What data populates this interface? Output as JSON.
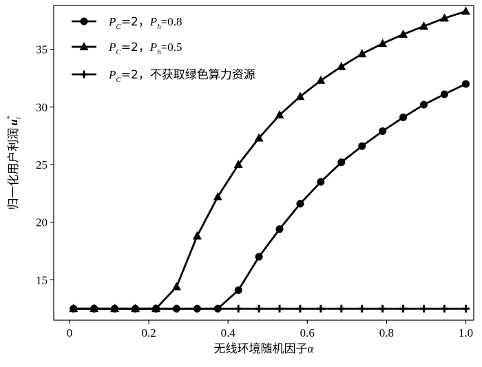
{
  "chart_data": {
    "type": "line",
    "xlabel": "无线环境随机因子",
    "xlabel_symbol": "α",
    "ylabel": "归一化用户利润",
    "ylabel_symbol": "u",
    "ylabel_sub": "i",
    "ylabel_sup": "*",
    "xlim": [
      -0.04,
      1.02
    ],
    "ylim": [
      11.5,
      38.8
    ],
    "xticks": [
      "0",
      "0.2",
      "0.4",
      "0.6",
      "0.8",
      "1.0"
    ],
    "xtick_values": [
      0,
      0.2,
      0.4,
      0.6,
      0.8,
      1.0
    ],
    "yticks": [
      "15",
      "20",
      "25",
      "30",
      "35"
    ],
    "ytick_values": [
      15,
      20,
      25,
      30,
      35
    ],
    "legend_position": "top-left",
    "grid": false,
    "x": [
      0.01,
      0.062,
      0.114,
      0.166,
      0.218,
      0.27,
      0.322,
      0.374,
      0.426,
      0.478,
      0.53,
      0.582,
      0.634,
      0.686,
      0.738,
      0.79,
      0.842,
      0.894,
      0.946,
      1.0
    ],
    "series": [
      {
        "legend_main": "P",
        "legend_sub": "C",
        "legend_mid": "=2，",
        "legend_main2": "P",
        "legend_sub2": "h",
        "legend_tail": "=0.8",
        "marker": "circle",
        "values": [
          12.5,
          12.5,
          12.5,
          12.5,
          12.5,
          12.5,
          12.5,
          12.5,
          14.1,
          17.0,
          19.4,
          21.6,
          23.5,
          25.2,
          26.6,
          27.9,
          29.1,
          30.2,
          31.1,
          32.0
        ]
      },
      {
        "legend_main": "P",
        "legend_sub": "C",
        "legend_mid": "=2，",
        "legend_main2": "P",
        "legend_sub2": "h",
        "legend_tail": "=0.5",
        "marker": "triangle",
        "values": [
          12.5,
          12.5,
          12.5,
          12.5,
          12.5,
          14.4,
          18.8,
          22.2,
          25.0,
          27.3,
          29.3,
          30.9,
          32.3,
          33.5,
          34.6,
          35.5,
          36.3,
          37.0,
          37.7,
          38.3
        ]
      },
      {
        "legend_main": "P",
        "legend_sub": "C",
        "legend_mid": "=2，不获取绿色算力资源",
        "legend_main2": "",
        "legend_sub2": "",
        "legend_tail": "",
        "marker": "plus",
        "values": [
          12.5,
          12.5,
          12.5,
          12.5,
          12.5,
          12.5,
          12.5,
          12.5,
          12.5,
          12.5,
          12.5,
          12.5,
          12.5,
          12.5,
          12.5,
          12.5,
          12.5,
          12.5,
          12.5,
          12.5
        ]
      }
    ]
  }
}
